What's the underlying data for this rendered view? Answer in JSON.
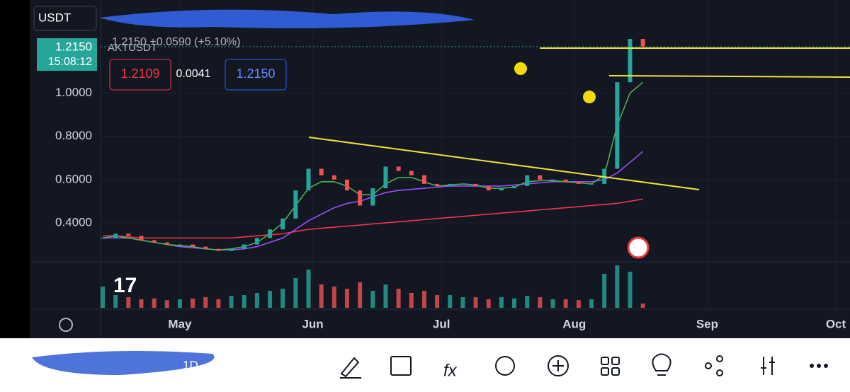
{
  "header": {
    "quote": "USDT",
    "symbol_line": "1.2150 +0.0590 (+5.10%)",
    "symbol": "AKTUSDT",
    "last_price": "1.2150",
    "countdown": "15:08:12",
    "bid": "1.2109",
    "spread": "0.0041",
    "ask": "1.2150"
  },
  "chart_data": {
    "type": "candlestick",
    "x": [
      0,
      3,
      6,
      9,
      12,
      15,
      18,
      21,
      24,
      27,
      30,
      33,
      36,
      39,
      42,
      45,
      48,
      51,
      54,
      57,
      60,
      63,
      66,
      69,
      72,
      75,
      78,
      81,
      84,
      87,
      90,
      93,
      96,
      99,
      102,
      105,
      108,
      111,
      114,
      117,
      120,
      123,
      126
    ],
    "close": [
      0.33,
      0.35,
      0.34,
      0.32,
      0.31,
      0.3,
      0.3,
      0.29,
      0.28,
      0.27,
      0.28,
      0.3,
      0.33,
      0.37,
      0.42,
      0.55,
      0.65,
      0.62,
      0.6,
      0.55,
      0.48,
      0.56,
      0.66,
      0.64,
      0.62,
      0.58,
      0.57,
      0.58,
      0.58,
      0.57,
      0.55,
      0.56,
      0.57,
      0.62,
      0.6,
      0.6,
      0.59,
      0.58,
      0.58,
      0.65,
      1.05,
      1.25,
      1.215
    ],
    "volume": [
      50,
      30,
      25,
      20,
      22,
      18,
      20,
      22,
      25,
      20,
      28,
      30,
      35,
      40,
      45,
      70,
      90,
      55,
      50,
      45,
      60,
      40,
      55,
      45,
      35,
      40,
      30,
      30,
      25,
      25,
      20,
      25,
      22,
      28,
      25,
      20,
      20,
      18,
      20,
      80,
      100,
      85,
      10
    ],
    "series": [
      {
        "name": "ma-red",
        "color": "#f23645",
        "values": [
          0.34,
          0.34,
          0.335,
          0.33,
          0.33,
          0.33,
          0.33,
          0.33,
          0.33,
          0.33,
          0.33,
          0.335,
          0.34,
          0.345,
          0.35,
          0.36,
          0.37,
          0.375,
          0.38,
          0.385,
          0.39,
          0.395,
          0.4,
          0.405,
          0.41,
          0.415,
          0.42,
          0.425,
          0.43,
          0.435,
          0.44,
          0.445,
          0.45,
          0.455,
          0.46,
          0.465,
          0.47,
          0.475,
          0.48,
          0.485,
          0.49,
          0.5,
          0.51
        ]
      },
      {
        "name": "ma-purple",
        "color": "#9c4dff",
        "values": [
          0.33,
          0.33,
          0.33,
          0.32,
          0.31,
          0.3,
          0.29,
          0.285,
          0.28,
          0.275,
          0.275,
          0.28,
          0.29,
          0.31,
          0.33,
          0.37,
          0.41,
          0.44,
          0.47,
          0.49,
          0.5,
          0.52,
          0.54,
          0.55,
          0.555,
          0.56,
          0.565,
          0.57,
          0.57,
          0.57,
          0.57,
          0.57,
          0.575,
          0.58,
          0.585,
          0.59,
          0.59,
          0.59,
          0.59,
          0.6,
          0.63,
          0.68,
          0.73
        ]
      },
      {
        "name": "ma-green",
        "color": "#4caf50",
        "values": [
          0.33,
          0.34,
          0.33,
          0.32,
          0.31,
          0.3,
          0.295,
          0.29,
          0.28,
          0.275,
          0.28,
          0.29,
          0.31,
          0.35,
          0.4,
          0.48,
          0.56,
          0.59,
          0.59,
          0.57,
          0.53,
          0.53,
          0.58,
          0.61,
          0.61,
          0.59,
          0.57,
          0.575,
          0.58,
          0.575,
          0.56,
          0.56,
          0.565,
          0.59,
          0.595,
          0.595,
          0.59,
          0.585,
          0.58,
          0.62,
          0.85,
          1.0,
          1.05
        ]
      }
    ],
    "up_color": "#26a69a",
    "down_color": "#ef5350",
    "xlim": [
      0,
      171
    ],
    "ylim": [
      0.22,
      1.43
    ],
    "vlim": [
      0,
      100
    ],
    "yticks": [
      {
        "value": 1,
        "label": "1.0000"
      },
      {
        "value": 0.8,
        "label": "0.8000"
      },
      {
        "value": 0.6,
        "label": "0.6000"
      },
      {
        "value": 0.4,
        "label": "0.4000"
      }
    ],
    "xticks": [
      {
        "value": 18,
        "label": "May"
      },
      {
        "value": 49,
        "label": "Jun"
      },
      {
        "value": 79,
        "label": "Jul"
      },
      {
        "value": 110,
        "label": "Aug"
      },
      {
        "value": 141,
        "label": "Sep"
      },
      {
        "value": 171,
        "label": "Oct"
      }
    ]
  },
  "footer": {
    "interval": "1D"
  }
}
